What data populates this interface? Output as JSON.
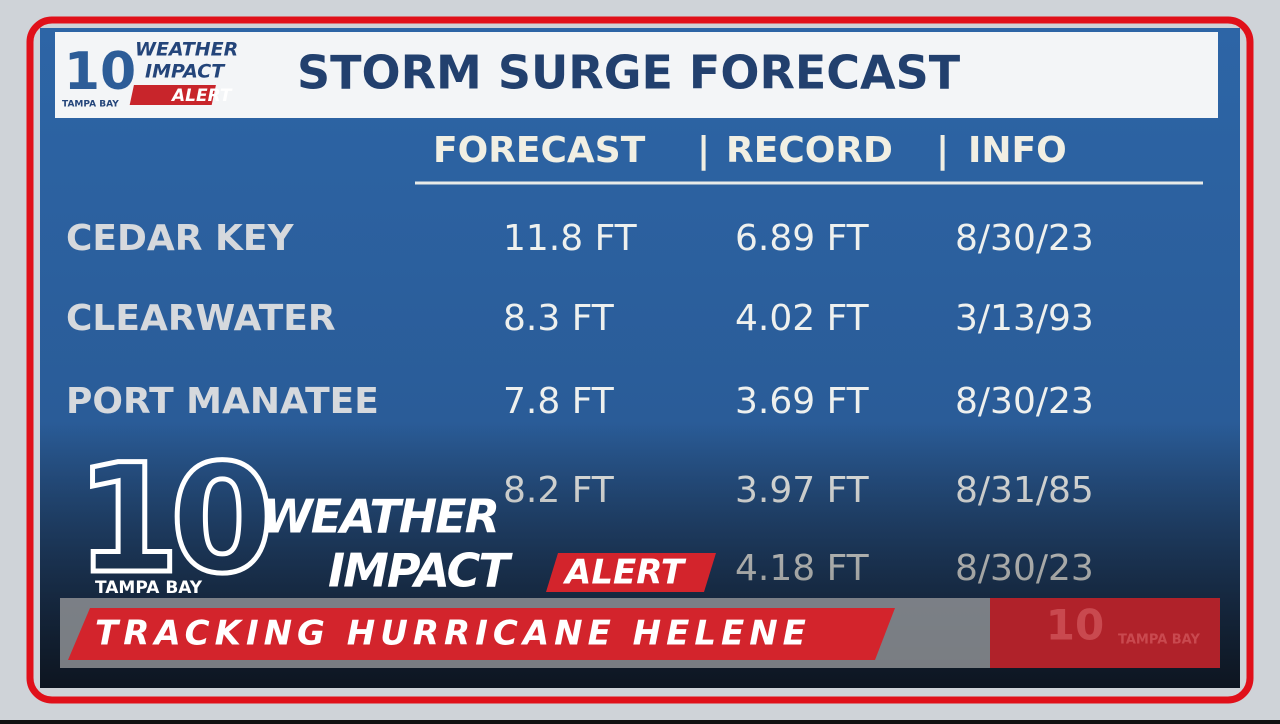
{
  "header": {
    "logo": {
      "number": "10",
      "line1": "WEATHER",
      "line2": "IMPACT",
      "line3": "ALERT",
      "station": "TAMPA BAY"
    },
    "title": "STORM SURGE FORECAST"
  },
  "table": {
    "columns": [
      "FORECAST",
      "RECORD",
      "INFO"
    ],
    "rows": [
      [
        "CEDAR KEY",
        "11.8 FT",
        "6.89 FT",
        "8/30/23"
      ],
      [
        "CLEARWATER",
        "8.3 FT",
        "4.02 FT",
        "3/13/93"
      ],
      [
        "PORT MANATEE",
        "7.8 FT",
        "3.69 FT",
        "8/30/23"
      ],
      [
        null,
        "8.2 FT",
        "3.97 FT",
        "8/31/85"
      ],
      [
        null,
        null,
        "4.18 FT",
        "8/30/23"
      ]
    ]
  },
  "overlay": {
    "number": "10",
    "station": "TAMPA BAY",
    "line1": "WEATHER",
    "line2": "IMPACT",
    "line3": "ALERT",
    "banner": "TRACKING HURRICANE HELENE",
    "corner_number": "10",
    "corner_station": "TAMPA BAY"
  }
}
